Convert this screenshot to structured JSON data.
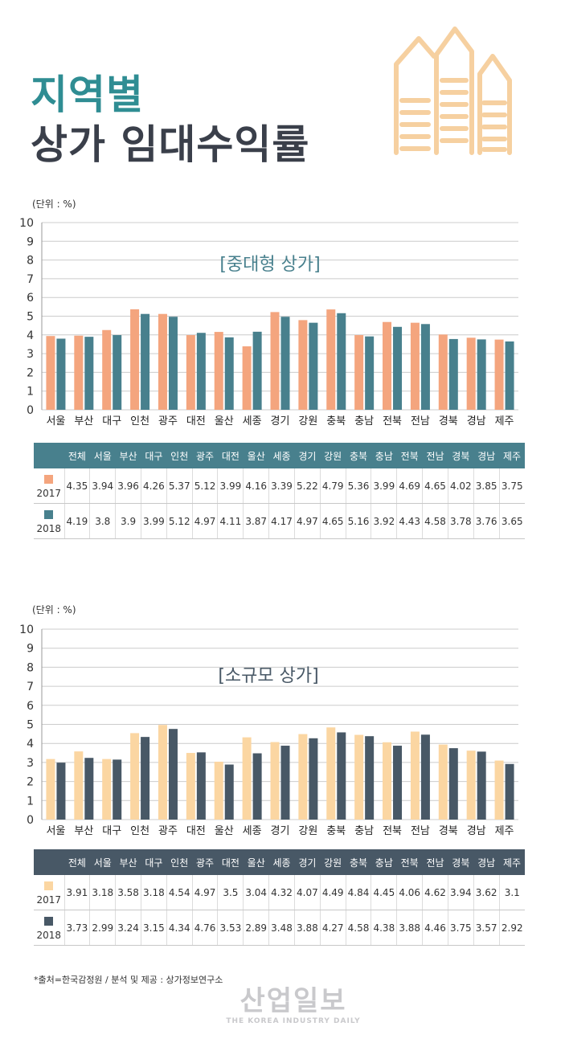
{
  "header": {
    "title_line1": "지역별",
    "title_line2": "상가 임대수익률"
  },
  "colors": {
    "teal": "#2f8d93",
    "dark_text": "#3a3f4a",
    "c1_2017": "#f4a57e",
    "c1_2018": "#48808d",
    "c2_2017": "#fbd6a2",
    "c2_2018": "#485866",
    "table1_header": "#48808d",
    "table2_header": "#485866",
    "house": "#f6d0a0"
  },
  "chart_data": [
    {
      "type": "bar",
      "title": "[중대형 상가]",
      "unit_label": "(단위 : %)",
      "ylim": [
        0,
        10
      ],
      "yticks": [
        "0",
        "1",
        "2",
        "3",
        "4",
        "5",
        "6",
        "7",
        "8",
        "9",
        "10"
      ],
      "grid": true,
      "categories": [
        "서울",
        "부산",
        "대구",
        "인천",
        "광주",
        "대전",
        "울산",
        "세종",
        "경기",
        "강원",
        "충북",
        "충남",
        "전북",
        "전남",
        "경북",
        "경남",
        "제주"
      ],
      "series": [
        {
          "name": "2017",
          "values": [
            3.94,
            3.96,
            4.26,
            5.37,
            5.12,
            3.99,
            4.16,
            3.39,
            5.22,
            4.79,
            5.36,
            3.99,
            4.69,
            4.65,
            4.02,
            3.85,
            3.75
          ]
        },
        {
          "name": "2018",
          "values": [
            3.8,
            3.9,
            3.99,
            5.12,
            4.97,
            4.11,
            3.87,
            4.17,
            4.97,
            4.65,
            5.16,
            3.92,
            4.43,
            4.58,
            3.78,
            3.76,
            3.65
          ]
        }
      ]
    },
    {
      "type": "bar",
      "title": "[소규모 상가]",
      "unit_label": "(단위 : %)",
      "ylim": [
        0,
        10
      ],
      "yticks": [
        "0",
        "1",
        "2",
        "3",
        "4",
        "5",
        "6",
        "7",
        "8",
        "9",
        "10"
      ],
      "grid": true,
      "categories": [
        "서울",
        "부산",
        "대구",
        "인천",
        "광주",
        "대전",
        "울산",
        "세종",
        "경기",
        "강원",
        "충북",
        "충남",
        "전북",
        "전남",
        "경북",
        "경남",
        "제주"
      ],
      "series": [
        {
          "name": "2017",
          "values": [
            3.18,
            3.58,
            3.18,
            4.54,
            4.97,
            3.5,
            3.04,
            4.32,
            4.07,
            4.49,
            4.84,
            4.45,
            4.06,
            4.62,
            3.94,
            3.62,
            3.1
          ]
        },
        {
          "name": "2018",
          "values": [
            2.99,
            3.24,
            3.15,
            4.34,
            4.76,
            3.53,
            2.89,
            3.48,
            3.88,
            4.27,
            4.58,
            4.38,
            3.88,
            4.46,
            3.75,
            3.57,
            2.92
          ]
        }
      ]
    }
  ],
  "tables": [
    {
      "headers": [
        "전체",
        "서울",
        "부산",
        "대구",
        "인천",
        "광주",
        "대전",
        "울산",
        "세종",
        "경기",
        "강원",
        "충북",
        "충남",
        "전북",
        "전남",
        "경북",
        "경남",
        "제주"
      ],
      "rows": [
        {
          "year": "2017",
          "values": [
            "4.35",
            "3.94",
            "3.96",
            "4.26",
            "5.37",
            "5.12",
            "3.99",
            "4.16",
            "3.39",
            "5.22",
            "4.79",
            "5.36",
            "3.99",
            "4.69",
            "4.65",
            "4.02",
            "3.85",
            "3.75"
          ]
        },
        {
          "year": "2018",
          "values": [
            "4.19",
            "3.8",
            "3.9",
            "3.99",
            "5.12",
            "4.97",
            "4.11",
            "3.87",
            "4.17",
            "4.97",
            "4.65",
            "5.16",
            "3.92",
            "4.43",
            "4.58",
            "3.78",
            "3.76",
            "3.65"
          ]
        }
      ]
    },
    {
      "headers": [
        "전체",
        "서울",
        "부산",
        "대구",
        "인천",
        "광주",
        "대전",
        "울산",
        "세종",
        "경기",
        "강원",
        "충북",
        "충남",
        "전북",
        "전남",
        "경북",
        "경남",
        "제주"
      ],
      "rows": [
        {
          "year": "2017",
          "values": [
            "3.91",
            "3.18",
            "3.58",
            "3.18",
            "4.54",
            "4.97",
            "3.5",
            "3.04",
            "4.32",
            "4.07",
            "4.49",
            "4.84",
            "4.45",
            "4.06",
            "4.62",
            "3.94",
            "3.62",
            "3.1"
          ]
        },
        {
          "year": "2018",
          "values": [
            "3.73",
            "2.99",
            "3.24",
            "3.15",
            "4.34",
            "4.76",
            "3.53",
            "2.89",
            "3.48",
            "3.88",
            "4.27",
            "4.58",
            "4.38",
            "3.88",
            "4.46",
            "3.75",
            "3.57",
            "2.92"
          ]
        }
      ]
    }
  ],
  "footer": {
    "source": "*출처=한국감정원 / 분석 및 제공 : 상가정보연구소",
    "logo_main": "산업일보",
    "logo_sub": "THE KOREA INDUSTRY DAILY"
  }
}
